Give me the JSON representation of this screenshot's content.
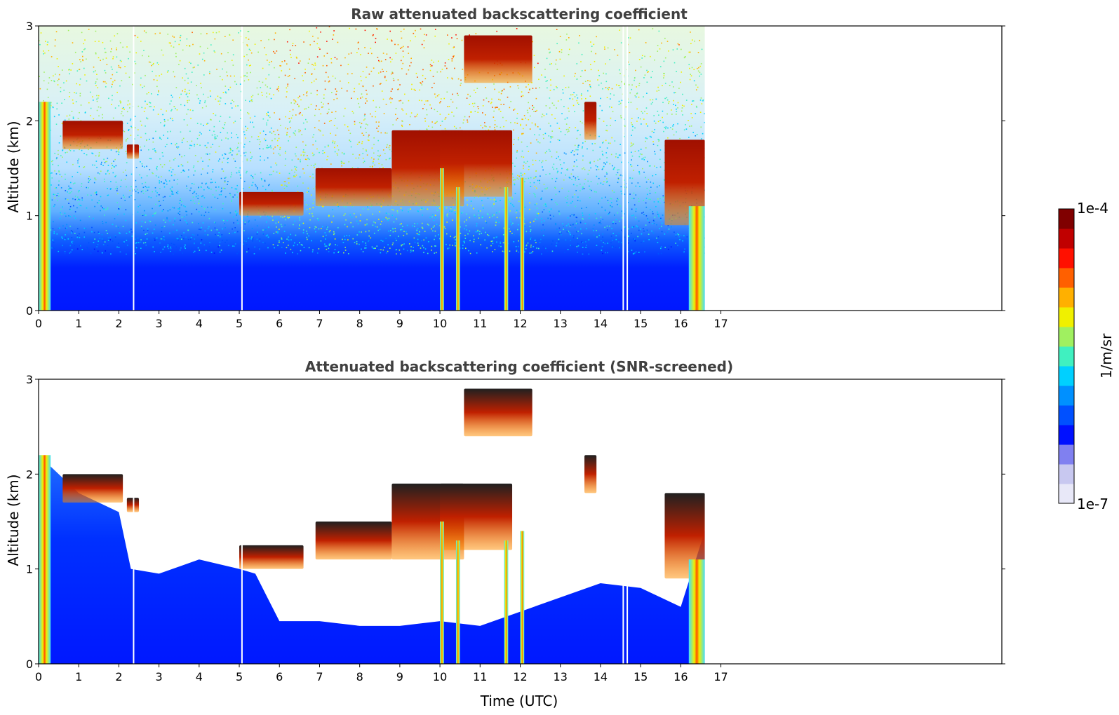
{
  "chart_data": [
    {
      "type": "heatmap",
      "title": "Raw attenuated backscattering coefficient",
      "xlabel": "",
      "ylabel": "Altitude (km)",
      "xlim": [
        0,
        24
      ],
      "ylim": [
        0,
        3
      ],
      "x_ticks": [
        0,
        1,
        2,
        3,
        4,
        5,
        6,
        7,
        8,
        9,
        10,
        11,
        12,
        13,
        14,
        15,
        16,
        17
      ],
      "y_ticks": [
        0,
        1,
        2,
        3
      ],
      "data_extent_x": [
        0,
        16.6
      ],
      "features": [
        {
          "kind": "boundary-layer",
          "x": [
            0,
            16.6
          ],
          "y": [
            0,
            0.7
          ],
          "level": 1e-06
        },
        {
          "kind": "cloud",
          "x": [
            0.6,
            2.1
          ],
          "y": [
            1.7,
            2.0
          ]
        },
        {
          "kind": "cloud",
          "x": [
            2.2,
            2.5
          ],
          "y": [
            1.6,
            1.75
          ]
        },
        {
          "kind": "cloud",
          "x": [
            5.0,
            6.6
          ],
          "y": [
            1.0,
            1.25
          ]
        },
        {
          "kind": "cloud",
          "x": [
            6.9,
            8.8
          ],
          "y": [
            1.1,
            1.5
          ]
        },
        {
          "kind": "cloud",
          "x": [
            8.8,
            10.6
          ],
          "y": [
            1.1,
            1.9
          ]
        },
        {
          "kind": "cloud",
          "x": [
            10.0,
            11.8
          ],
          "y": [
            1.2,
            1.9
          ]
        },
        {
          "kind": "cloud",
          "x": [
            10.6,
            12.3
          ],
          "y": [
            2.4,
            2.9
          ]
        },
        {
          "kind": "cloud",
          "x": [
            13.6,
            13.9
          ],
          "y": [
            1.8,
            2.2
          ]
        },
        {
          "kind": "cloud",
          "x": [
            15.6,
            16.6
          ],
          "y": [
            0.9,
            1.8
          ]
        },
        {
          "kind": "precipitation",
          "x": [
            0,
            0.3
          ],
          "y": [
            0,
            2.2
          ]
        },
        {
          "kind": "precipitation",
          "x": [
            10.0,
            10.1
          ],
          "y": [
            0,
            1.5
          ]
        },
        {
          "kind": "precipitation",
          "x": [
            10.4,
            10.5
          ],
          "y": [
            0,
            1.3
          ]
        },
        {
          "kind": "precipitation",
          "x": [
            11.6,
            11.7
          ],
          "y": [
            0,
            1.3
          ]
        },
        {
          "kind": "precipitation",
          "x": [
            12.0,
            12.1
          ],
          "y": [
            0,
            1.4
          ]
        },
        {
          "kind": "precipitation",
          "x": [
            16.2,
            16.6
          ],
          "y": [
            0,
            1.1
          ]
        }
      ],
      "gaps_x": [
        2.35,
        5.05,
        14.55,
        14.65
      ]
    },
    {
      "type": "heatmap",
      "title": "Attenuated backscattering coefficient (SNR-screened)",
      "xlabel": "Time (UTC)",
      "ylabel": "Altitude (km)",
      "xlim": [
        0,
        24
      ],
      "ylim": [
        0,
        3
      ],
      "x_ticks": [
        0,
        1,
        2,
        3,
        4,
        5,
        6,
        7,
        8,
        9,
        10,
        11,
        12,
        13,
        14,
        15,
        16,
        17
      ],
      "y_ticks": [
        0,
        1,
        2,
        3
      ],
      "data_extent_x": [
        0,
        16.6
      ],
      "screened_layer_top_km": [
        {
          "x": 0,
          "y": 2.2
        },
        {
          "x": 1,
          "y": 1.8
        },
        {
          "x": 2,
          "y": 1.6
        },
        {
          "x": 2.3,
          "y": 1.0
        },
        {
          "x": 3,
          "y": 0.95
        },
        {
          "x": 4,
          "y": 1.1
        },
        {
          "x": 5,
          "y": 1.0
        },
        {
          "x": 5.4,
          "y": 0.95
        },
        {
          "x": 6,
          "y": 0.45
        },
        {
          "x": 7,
          "y": 0.45
        },
        {
          "x": 8,
          "y": 0.4
        },
        {
          "x": 9,
          "y": 0.4
        },
        {
          "x": 10,
          "y": 0.45
        },
        {
          "x": 11,
          "y": 0.4
        },
        {
          "x": 12,
          "y": 0.55
        },
        {
          "x": 13,
          "y": 0.7
        },
        {
          "x": 14,
          "y": 0.85
        },
        {
          "x": 15,
          "y": 0.8
        },
        {
          "x": 16,
          "y": 0.6
        },
        {
          "x": 16.6,
          "y": 1.4
        }
      ]
    }
  ],
  "colorbar": {
    "label": "1/m/sr",
    "min_label": "1e-7",
    "max_label": "1e-4",
    "scale": "log",
    "colors": [
      "#e8e8f8",
      "#c8c8f0",
      "#8080f0",
      "#0010ff",
      "#0050ff",
      "#0090ff",
      "#00d0ff",
      "#40f0c0",
      "#a0f060",
      "#f0f000",
      "#ffb000",
      "#ff6000",
      "#ff1000",
      "#c00000",
      "#800000"
    ]
  },
  "colors": {
    "title": "#404040",
    "axis": "#000000"
  }
}
